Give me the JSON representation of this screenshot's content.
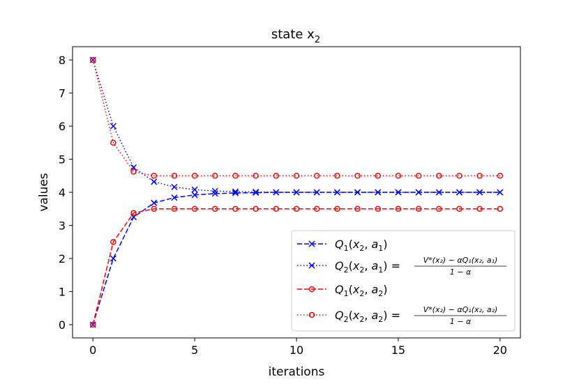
{
  "chart_data": {
    "type": "line",
    "title": "state x",
    "title_subscript": "2",
    "xlabel": "iterations",
    "ylabel": "values",
    "xlim": [
      -1,
      21
    ],
    "ylim": [
      -0.4,
      8.4
    ],
    "xticks": [
      0,
      5,
      10,
      15,
      20
    ],
    "yticks": [
      0,
      1,
      2,
      3,
      4,
      5,
      6,
      7,
      8
    ],
    "grid": false,
    "legend_position": "lower-right",
    "x": [
      0,
      1,
      2,
      3,
      4,
      5,
      6,
      7,
      8,
      9,
      10,
      11,
      12,
      13,
      14,
      15,
      16,
      17,
      18,
      19,
      20
    ],
    "series": [
      {
        "name": "Q1(x2, a1)",
        "color": "#0000ff",
        "linestyle": "dashed",
        "marker": "x",
        "values": [
          0,
          2,
          3.25,
          3.68,
          3.84,
          3.92,
          3.96,
          3.98,
          3.99,
          4,
          4,
          4,
          4,
          4,
          4,
          4,
          4,
          4,
          4,
          4,
          4
        ]
      },
      {
        "name": "Q2(x2, a1) = (V*(x2) − αQ1(x2, a1)) / (1 − α)",
        "color": "#0000ff",
        "linestyle": "dotted",
        "marker": "x",
        "values": [
          8,
          6,
          4.75,
          4.32,
          4.16,
          4.08,
          4.04,
          4.02,
          4.01,
          4,
          4,
          4,
          4,
          4,
          4,
          4,
          4,
          4,
          4,
          4,
          4
        ]
      },
      {
        "name": "Q1(x2, a2)",
        "color": "#ff0000",
        "linestyle": "dashed",
        "marker": "o",
        "values": [
          0,
          2.5,
          3.375,
          3.5,
          3.5,
          3.5,
          3.5,
          3.5,
          3.5,
          3.5,
          3.5,
          3.5,
          3.5,
          3.5,
          3.5,
          3.5,
          3.5,
          3.5,
          3.5,
          3.5,
          3.5
        ]
      },
      {
        "name": "Q2(x2, a2) = (V*(x2) − αQ1(x2, a2)) / (1 − α)",
        "color": "#ff0000",
        "linestyle": "dotted",
        "marker": "o",
        "values": [
          8,
          5.5,
          4.625,
          4.5,
          4.5,
          4.5,
          4.5,
          4.5,
          4.5,
          4.5,
          4.5,
          4.5,
          4.5,
          4.5,
          4.5,
          4.5,
          4.5,
          4.5,
          4.5,
          4.5,
          4.5
        ]
      }
    ]
  },
  "legend": {
    "items": [
      {
        "q": "Q",
        "q_sub": "1",
        "args": "(x",
        "args_sub": "2",
        "args_rest": ", a",
        "a_sub": "1",
        "close": ")"
      },
      {
        "q": "Q",
        "q_sub": "2",
        "args": "(x",
        "args_sub": "2",
        "args_rest": ", a",
        "a_sub": "1",
        "close": ") =",
        "num": "V*(x₂) − αQ₁(x₂, a₁)",
        "den": "1 − α"
      },
      {
        "q": "Q",
        "q_sub": "1",
        "args": "(x",
        "args_sub": "2",
        "args_rest": ", a",
        "a_sub": "2",
        "close": ")"
      },
      {
        "q": "Q",
        "q_sub": "2",
        "args": "(x",
        "args_sub": "2",
        "args_rest": ", a",
        "a_sub": "2",
        "close": ") =",
        "num": "V*(x₂) − αQ₁(x₂, a₂)",
        "den": "1 − α"
      }
    ]
  }
}
